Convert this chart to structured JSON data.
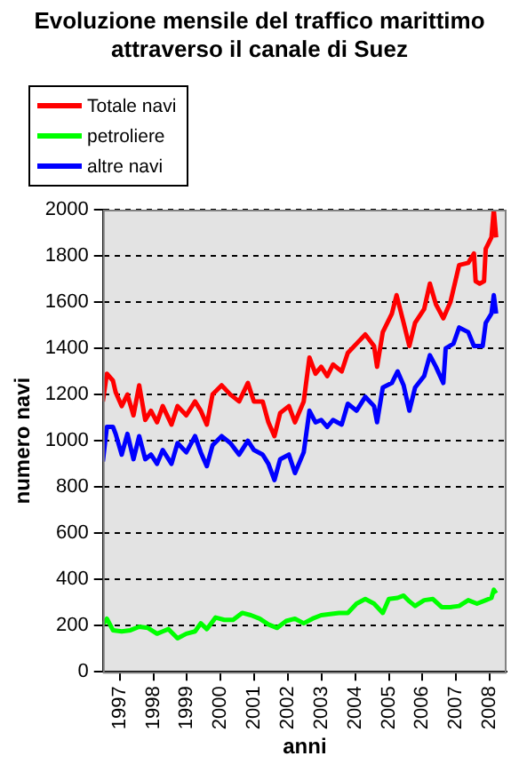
{
  "chart_data": {
    "type": "line",
    "title": "Evoluzione mensile del traffico marittimo attraverso il canale di Suez",
    "xlabel": "anni",
    "ylabel": "numero navi",
    "xlim": [
      1997,
      2009
    ],
    "xticks": [
      {
        "value": 1997.5,
        "label": "1997"
      },
      {
        "value": 1998.5,
        "label": "1998"
      },
      {
        "value": 1999.5,
        "label": "1999"
      },
      {
        "value": 2000.5,
        "label": "2000"
      },
      {
        "value": 2001.5,
        "label": "2001"
      },
      {
        "value": 2002.5,
        "label": "2002"
      },
      {
        "value": 2003.5,
        "label": "2003"
      },
      {
        "value": 2004.5,
        "label": "2004"
      },
      {
        "value": 2005.5,
        "label": "2005"
      },
      {
        "value": 2006.5,
        "label": "2006"
      },
      {
        "value": 2007.5,
        "label": "2007"
      },
      {
        "value": 2008.5,
        "label": "2008"
      }
    ],
    "ylim": [
      0,
      2000
    ],
    "yticks": [
      0,
      200,
      400,
      600,
      800,
      1000,
      1200,
      1400,
      1600,
      1800,
      2000
    ],
    "grid": "y",
    "legend": "top left",
    "marker": "none",
    "line_style": "solid",
    "series": [
      {
        "name": "Totale navi",
        "color": "#ff0000",
        "x": [
          1997.0,
          1997.12,
          1997.3,
          1997.38,
          1997.56,
          1997.73,
          1997.91,
          1998.08,
          1998.26,
          1998.43,
          1998.61,
          1998.78,
          1999.04,
          1999.22,
          1999.48,
          1999.74,
          1999.91,
          2000.09,
          2000.26,
          2000.53,
          2000.79,
          2001.05,
          2001.31,
          2001.49,
          2001.75,
          2001.92,
          2002.1,
          2002.27,
          2002.53,
          2002.71,
          2002.97,
          2003.14,
          2003.32,
          2003.49,
          2003.67,
          2003.84,
          2004.1,
          2004.28,
          2004.54,
          2004.8,
          2005.06,
          2005.15,
          2005.32,
          2005.59,
          2005.73,
          2005.94,
          2006.11,
          2006.28,
          2006.55,
          2006.72,
          2006.9,
          2007.12,
          2007.33,
          2007.59,
          2007.86,
          2008.03,
          2008.08,
          2008.2,
          2008.33,
          2008.38,
          2008.55,
          2008.62,
          2008.69
        ],
        "values": [
          1170,
          1290,
          1260,
          1210,
          1150,
          1200,
          1110,
          1240,
          1090,
          1130,
          1080,
          1150,
          1070,
          1150,
          1110,
          1170,
          1130,
          1070,
          1200,
          1240,
          1200,
          1170,
          1250,
          1170,
          1170,
          1080,
          1020,
          1120,
          1150,
          1080,
          1170,
          1360,
          1290,
          1320,
          1280,
          1330,
          1300,
          1380,
          1420,
          1460,
          1410,
          1320,
          1470,
          1550,
          1630,
          1510,
          1410,
          1510,
          1570,
          1680,
          1590,
          1530,
          1600,
          1760,
          1770,
          1810,
          1690,
          1680,
          1690,
          1830,
          1880,
          2000,
          1880
        ]
      },
      {
        "name": "petroliere",
        "color": "#00ff00",
        "x": [
          1997.0,
          1997.12,
          1997.3,
          1997.56,
          1997.82,
          1998.08,
          1998.34,
          1998.61,
          1998.78,
          1998.95,
          1999.22,
          1999.48,
          1999.74,
          1999.91,
          2000.09,
          2000.35,
          2000.61,
          2000.87,
          2001.14,
          2001.4,
          2001.66,
          2001.92,
          2002.18,
          2002.45,
          2002.71,
          2002.97,
          2003.23,
          2003.49,
          2003.75,
          2004.02,
          2004.28,
          2004.54,
          2004.8,
          2005.06,
          2005.32,
          2005.5,
          2005.76,
          2005.94,
          2006.11,
          2006.28,
          2006.55,
          2006.81,
          2007.07,
          2007.33,
          2007.59,
          2007.86,
          2008.12,
          2008.38,
          2008.55,
          2008.62,
          2008.69
        ],
        "values": [
          205,
          230,
          180,
          175,
          180,
          195,
          190,
          165,
          175,
          185,
          145,
          165,
          175,
          210,
          185,
          235,
          225,
          225,
          255,
          245,
          230,
          205,
          190,
          220,
          230,
          210,
          230,
          245,
          250,
          255,
          255,
          295,
          315,
          295,
          255,
          315,
          320,
          330,
          305,
          285,
          310,
          315,
          280,
          280,
          285,
          310,
          295,
          310,
          320,
          355,
          340
        ]
      },
      {
        "name": "altre navi",
        "color": "#0000ff",
        "x": [
          1997.0,
          1997.12,
          1997.3,
          1997.38,
          1997.56,
          1997.73,
          1997.91,
          1998.08,
          1998.26,
          1998.43,
          1998.61,
          1998.78,
          1999.04,
          1999.22,
          1999.48,
          1999.74,
          1999.91,
          2000.09,
          2000.26,
          2000.53,
          2000.79,
          2001.05,
          2001.31,
          2001.49,
          2001.75,
          2001.92,
          2002.1,
          2002.27,
          2002.53,
          2002.71,
          2002.97,
          2003.14,
          2003.32,
          2003.49,
          2003.67,
          2003.84,
          2004.1,
          2004.28,
          2004.54,
          2004.8,
          2005.06,
          2005.15,
          2005.32,
          2005.59,
          2005.76,
          2005.94,
          2006.11,
          2006.28,
          2006.55,
          2006.72,
          2006.9,
          2007.12,
          2007.19,
          2007.42,
          2007.59,
          2007.86,
          2008.03,
          2008.29,
          2008.38,
          2008.55,
          2008.62,
          2008.69
        ],
        "values": [
          910,
          1060,
          1060,
          1030,
          940,
          1030,
          920,
          1020,
          920,
          940,
          900,
          960,
          900,
          990,
          950,
          1020,
          950,
          890,
          980,
          1020,
          990,
          940,
          1000,
          960,
          940,
          900,
          830,
          920,
          940,
          860,
          950,
          1130,
          1080,
          1090,
          1060,
          1090,
          1070,
          1160,
          1130,
          1190,
          1150,
          1080,
          1230,
          1250,
          1300,
          1240,
          1130,
          1230,
          1280,
          1370,
          1320,
          1250,
          1400,
          1420,
          1490,
          1470,
          1410,
          1410,
          1510,
          1550,
          1630,
          1550
        ]
      }
    ]
  }
}
